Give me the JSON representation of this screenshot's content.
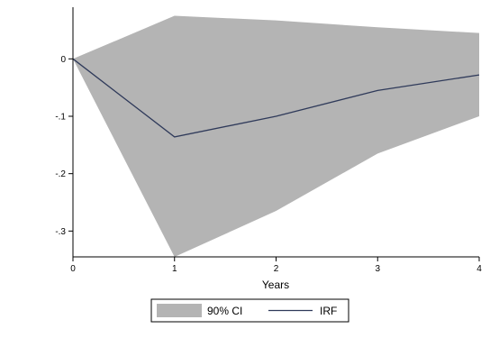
{
  "chart_data": {
    "type": "area",
    "title": "",
    "xlabel": "Years",
    "ylabel": "",
    "x": [
      0,
      1,
      2,
      3,
      4
    ],
    "xlim": [
      0,
      4
    ],
    "ylim": [
      -0.345,
      0.09
    ],
    "x_ticks": [
      0,
      1,
      2,
      3,
      4
    ],
    "x_tick_labels": [
      "0",
      "1",
      "2",
      "3",
      "4"
    ],
    "y_ticks": [
      0,
      -0.1,
      -0.2,
      -0.3
    ],
    "y_tick_labels": [
      "0",
      "-.1",
      "-.2",
      "-.3"
    ],
    "grid": false,
    "legend_position": "bottom",
    "series": [
      {
        "name": "90% CI",
        "kind": "band",
        "upper": [
          0.0,
          0.075,
          0.067,
          0.055,
          0.045
        ],
        "lower": [
          0.0,
          -0.345,
          -0.265,
          -0.165,
          -0.1
        ],
        "color": "#b4b4b4"
      },
      {
        "name": "IRF",
        "kind": "line",
        "values": [
          0.0,
          -0.136,
          -0.1,
          -0.055,
          -0.028
        ],
        "color": "#2f3a5a"
      }
    ]
  }
}
